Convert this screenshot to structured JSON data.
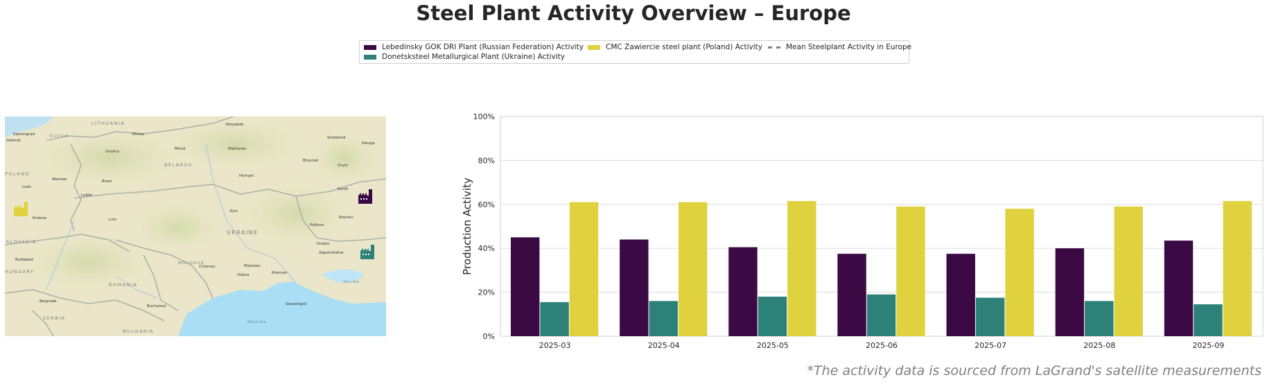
{
  "title": "Steel Plant Activity Overview – Europe",
  "legend": {
    "items": [
      {
        "label": "Lebedinsky GOK DRI Plant (Russian Federation) Activity",
        "color": "#3b0a45",
        "kind": "bar"
      },
      {
        "label": "Donetsksteel Metallurgical Plant (Ukraine) Activity",
        "color": "#2e8179",
        "kind": "bar"
      },
      {
        "label": "CMC Zawiercie steel plant (Poland) Activity",
        "color": "#e0d23e",
        "kind": "bar"
      },
      {
        "label": "Mean Steelplant Activity in Europe",
        "color": "#808080",
        "kind": "dashed-line"
      }
    ]
  },
  "map": {
    "countries": [
      "LITHUANIA",
      "BELARUS",
      "POLAND",
      "UKRAINE",
      "SLOVAKIA",
      "HUNGARY",
      "MOLDOVA",
      "ROMANIA",
      "SERBIA",
      "BULGARIA",
      "RUSSIA"
    ],
    "cities": [
      "Kaliningrad",
      "Gdansk",
      "Vilnius",
      "Minsk",
      "Vitsyebsk",
      "Mahilyow",
      "Homyel",
      "Bryansk",
      "Kursk",
      "Kharkiv",
      "Kyiv",
      "Warsaw",
      "Lodz",
      "Lublin",
      "Krakow",
      "Lviv",
      "Dnipro",
      "Odesa",
      "Chisinau",
      "Bucharest",
      "Budapest",
      "Belgrade",
      "Zaporizhzhia",
      "Mykolaiv",
      "Kherson",
      "Sevastopol",
      "Poltava",
      "Oryol",
      "Kaluga",
      "Smolensk",
      "Grodno",
      "Brest"
    ],
    "sea_label": "Black Sea",
    "sea2_label": "Azov Sea",
    "markers": [
      {
        "plant": "Lebedinsky GOK DRI Plant",
        "color": "#3b0a45",
        "icon": "factory-icon"
      },
      {
        "plant": "Donetsksteel Metallurgical Plant",
        "color": "#2e8179",
        "icon": "factory-icon"
      },
      {
        "plant": "CMC Zawiercie steel plant",
        "color": "#e0d23e",
        "icon": "factory-icon"
      }
    ]
  },
  "chart_data": {
    "type": "bar",
    "categories": [
      "2025-03",
      "2025-04",
      "2025-05",
      "2025-06",
      "2025-07",
      "2025-08",
      "2025-09"
    ],
    "series": [
      {
        "name": "Lebedinsky GOK DRI Plant (Russian Federation) Activity",
        "color": "#3b0a45",
        "values": [
          45,
          44,
          40.5,
          37.5,
          37.5,
          40,
          43.5
        ]
      },
      {
        "name": "Donetsksteel Metallurgical Plant (Ukraine) Activity",
        "color": "#2e8179",
        "values": [
          15.5,
          16,
          18,
          19,
          17.5,
          16,
          14.5
        ]
      },
      {
        "name": "CMC Zawiercie steel plant (Poland) Activity",
        "color": "#e0d23e",
        "values": [
          61,
          61,
          61.5,
          59,
          58,
          59,
          61.5
        ]
      }
    ],
    "ylabel": "Production Activity",
    "ylim": [
      0,
      100
    ],
    "yticks": [
      0,
      20,
      40,
      60,
      80,
      100
    ],
    "ytick_labels": [
      "0%",
      "20%",
      "40%",
      "60%",
      "80%",
      "100%"
    ],
    "grid": true,
    "legend_position": "top-center"
  },
  "footnote": "*The activity data is sourced from LaGrand's satellite measurements"
}
